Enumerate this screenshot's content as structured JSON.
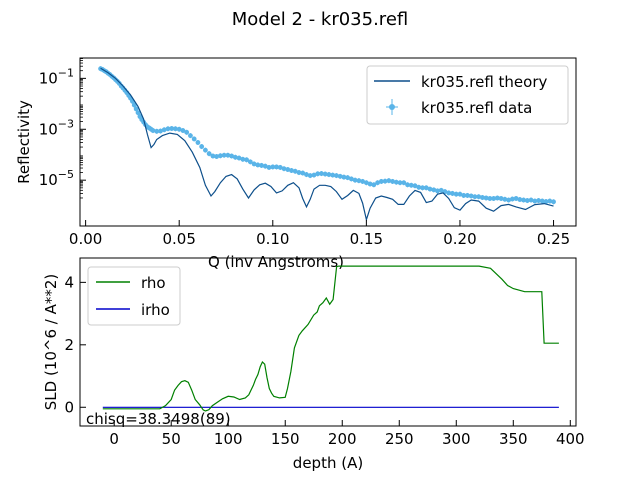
{
  "figure_title": "Model 2 - kr035.refl",
  "chart_data": [
    {
      "type": "line",
      "name": "reflectivity",
      "xlabel": "Q (inv Angstroms)",
      "ylabel": "Reflectivity",
      "yscale": "log",
      "xlim": [
        -0.003,
        0.262
      ],
      "ylim_log10": [
        -6.8,
        -0.2
      ],
      "xticks": [
        0.0,
        0.05,
        0.1,
        0.15,
        0.2,
        0.25
      ],
      "xtick_labels": [
        "0.00",
        "0.05",
        "0.10",
        "0.15",
        "0.20",
        "0.25"
      ],
      "yticks_log10": [
        -1,
        -3,
        -5
      ],
      "legend": {
        "position": "top-right",
        "theory_label": "kr035.refl theory",
        "data_label": "kr035.refl data"
      },
      "colors": {
        "theory": "#0d4f8b",
        "data": "#5ab4e8"
      },
      "theory": {
        "name": "kr035.refl theory",
        "x": [
          0.008,
          0.012,
          0.016,
          0.02,
          0.024,
          0.028,
          0.031,
          0.033,
          0.035,
          0.0365,
          0.038,
          0.041,
          0.045,
          0.049,
          0.053,
          0.057,
          0.061,
          0.064,
          0.067,
          0.069,
          0.072,
          0.075,
          0.078,
          0.081,
          0.084,
          0.087,
          0.09,
          0.093,
          0.096,
          0.099,
          0.102,
          0.105,
          0.108,
          0.111,
          0.114,
          0.116,
          0.118,
          0.12,
          0.122,
          0.125,
          0.128,
          0.131,
          0.134,
          0.137,
          0.14,
          0.143,
          0.146,
          0.148,
          0.15,
          0.152,
          0.155,
          0.158,
          0.161,
          0.164,
          0.167,
          0.17,
          0.173,
          0.176,
          0.179,
          0.182,
          0.185,
          0.188,
          0.191,
          0.194,
          0.197,
          0.2,
          0.203,
          0.206,
          0.21,
          0.214,
          0.218,
          0.222,
          0.226,
          0.23,
          0.235,
          0.24,
          0.245,
          0.25
        ],
        "y_log10": [
          -0.6,
          -0.78,
          -1.0,
          -1.3,
          -1.65,
          -2.1,
          -2.6,
          -3.2,
          -3.72,
          -3.6,
          -3.4,
          -3.25,
          -3.15,
          -3.2,
          -3.45,
          -3.9,
          -4.5,
          -5.2,
          -5.62,
          -5.45,
          -5.1,
          -4.85,
          -4.78,
          -4.95,
          -5.35,
          -5.7,
          -5.38,
          -5.18,
          -5.12,
          -5.25,
          -5.5,
          -5.42,
          -5.2,
          -5.1,
          -5.3,
          -5.72,
          -6.05,
          -5.75,
          -5.35,
          -5.2,
          -5.2,
          -5.25,
          -5.45,
          -5.75,
          -5.6,
          -5.4,
          -5.52,
          -5.9,
          -6.55,
          -6.1,
          -5.7,
          -5.62,
          -5.68,
          -5.75,
          -5.95,
          -5.95,
          -5.62,
          -5.4,
          -5.48,
          -5.88,
          -5.82,
          -5.55,
          -5.5,
          -5.72,
          -6.08,
          -6.18,
          -5.92,
          -5.78,
          -5.82,
          -6.1,
          -6.22,
          -6.0,
          -5.95,
          -6.05,
          -6.15,
          -5.96,
          -5.92,
          -6.02
        ]
      },
      "data": {
        "name": "kr035.refl data",
        "x": [
          0.008,
          0.009,
          0.01,
          0.011,
          0.012,
          0.013,
          0.014,
          0.015,
          0.016,
          0.017,
          0.018,
          0.019,
          0.02,
          0.021,
          0.022,
          0.023,
          0.024,
          0.025,
          0.026,
          0.027,
          0.028,
          0.029,
          0.03,
          0.031,
          0.032,
          0.033,
          0.034,
          0.035,
          0.036,
          0.038,
          0.04,
          0.042,
          0.044,
          0.046,
          0.048,
          0.05,
          0.052,
          0.054,
          0.056,
          0.058,
          0.06,
          0.062,
          0.064,
          0.066,
          0.068,
          0.07,
          0.072,
          0.074,
          0.076,
          0.078,
          0.08,
          0.082,
          0.084,
          0.086,
          0.088,
          0.09,
          0.092,
          0.094,
          0.096,
          0.098,
          0.1,
          0.102,
          0.104,
          0.106,
          0.108,
          0.11,
          0.112,
          0.114,
          0.116,
          0.118,
          0.12,
          0.122,
          0.124,
          0.126,
          0.128,
          0.13,
          0.132,
          0.134,
          0.136,
          0.138,
          0.14,
          0.142,
          0.144,
          0.146,
          0.148,
          0.15,
          0.152,
          0.154,
          0.156,
          0.158,
          0.16,
          0.162,
          0.164,
          0.166,
          0.168,
          0.17,
          0.172,
          0.174,
          0.176,
          0.178,
          0.18,
          0.182,
          0.184,
          0.186,
          0.188,
          0.19,
          0.192,
          0.194,
          0.196,
          0.198,
          0.2,
          0.202,
          0.204,
          0.206,
          0.208,
          0.21,
          0.212,
          0.214,
          0.216,
          0.218,
          0.22,
          0.222,
          0.224,
          0.226,
          0.228,
          0.23,
          0.232,
          0.234,
          0.236,
          0.238,
          0.24,
          0.242,
          0.244,
          0.246,
          0.248,
          0.25
        ],
        "y_log10": [
          -0.62,
          -0.65,
          -0.7,
          -0.74,
          -0.8,
          -0.85,
          -0.92,
          -0.98,
          -1.05,
          -1.12,
          -1.2,
          -1.3,
          -1.38,
          -1.47,
          -1.56,
          -1.67,
          -1.78,
          -1.9,
          -2.05,
          -2.2,
          -2.35,
          -2.5,
          -2.62,
          -2.72,
          -2.82,
          -2.9,
          -2.95,
          -3.0,
          -3.05,
          -3.08,
          -3.07,
          -3.02,
          -2.98,
          -2.97,
          -2.98,
          -3.0,
          -3.05,
          -3.12,
          -3.25,
          -3.38,
          -3.52,
          -3.68,
          -3.82,
          -3.96,
          -4.05,
          -4.07,
          -4.04,
          -4.02,
          -4.02,
          -4.05,
          -4.1,
          -4.13,
          -4.18,
          -4.2,
          -4.28,
          -4.36,
          -4.4,
          -4.42,
          -4.45,
          -4.5,
          -4.48,
          -4.48,
          -4.5,
          -4.55,
          -4.58,
          -4.62,
          -4.65,
          -4.7,
          -4.72,
          -4.78,
          -4.82,
          -4.8,
          -4.75,
          -4.74,
          -4.76,
          -4.78,
          -4.8,
          -4.82,
          -4.85,
          -4.88,
          -4.9,
          -4.95,
          -5.0,
          -5.02,
          -5.05,
          -5.1,
          -5.15,
          -5.18,
          -5.1,
          -5.05,
          -5.04,
          -5.02,
          -5.05,
          -5.08,
          -5.1,
          -5.1,
          -5.18,
          -5.2,
          -5.22,
          -5.28,
          -5.3,
          -5.3,
          -5.35,
          -5.38,
          -5.42,
          -5.4,
          -5.45,
          -5.5,
          -5.52,
          -5.55,
          -5.55,
          -5.6,
          -5.6,
          -5.62,
          -5.65,
          -5.65,
          -5.68,
          -5.7,
          -5.72,
          -5.72,
          -5.7,
          -5.72,
          -5.75,
          -5.78,
          -5.74,
          -5.72,
          -5.76,
          -5.78,
          -5.8,
          -5.78,
          -5.82,
          -5.8,
          -5.82,
          -5.84,
          -5.82,
          -5.85
        ]
      }
    },
    {
      "type": "line",
      "name": "sld-profile",
      "xlabel": "depth (A)",
      "ylabel": "SLD (10^6 / A**2)",
      "xlim": [
        -30,
        405
      ],
      "ylim": [
        -0.6,
        4.78
      ],
      "xticks": [
        0,
        50,
        100,
        150,
        200,
        250,
        300,
        350,
        400
      ],
      "yticks": [
        0,
        2,
        4
      ],
      "legend": {
        "position": "top-left"
      },
      "colors": {
        "rho": "#008000",
        "irho": "#0000cc"
      },
      "annotation": "chisq=38.3498(89)",
      "series": [
        {
          "name": "rho",
          "x": [
            -10,
            40,
            45,
            50,
            53,
            56,
            59,
            62,
            65,
            68,
            71,
            75,
            78,
            80,
            83,
            86,
            90,
            95,
            100,
            105,
            110,
            115,
            118,
            120,
            122,
            124,
            126,
            128,
            130,
            132,
            134,
            136,
            138,
            140,
            145,
            150,
            152,
            155,
            158,
            162,
            165,
            170,
            175,
            178,
            180,
            183,
            186,
            189,
            192,
            195,
            197,
            200,
            220,
            240,
            260,
            280,
            300,
            320,
            330,
            340,
            345,
            350,
            360,
            370,
            375,
            377,
            380,
            390
          ],
          "y": [
            -0.05,
            -0.05,
            0.05,
            0.25,
            0.55,
            0.7,
            0.82,
            0.85,
            0.8,
            0.55,
            0.25,
            0.08,
            -0.08,
            -0.12,
            -0.08,
            0.05,
            0.15,
            0.27,
            0.35,
            0.33,
            0.25,
            0.3,
            0.4,
            0.55,
            0.7,
            0.9,
            1.05,
            1.3,
            1.45,
            1.38,
            0.95,
            0.6,
            0.45,
            0.35,
            0.3,
            0.32,
            0.6,
            1.15,
            1.9,
            2.3,
            2.45,
            2.65,
            2.95,
            3.05,
            3.25,
            3.35,
            3.5,
            3.3,
            3.45,
            4.5,
            4.52,
            4.52,
            4.52,
            4.52,
            4.52,
            4.52,
            4.52,
            4.52,
            4.45,
            4.1,
            3.9,
            3.8,
            3.7,
            3.7,
            3.7,
            2.05,
            2.05,
            2.05
          ]
        },
        {
          "name": "irho",
          "x": [
            -10,
            390
          ],
          "y": [
            0,
            0
          ]
        }
      ]
    }
  ]
}
